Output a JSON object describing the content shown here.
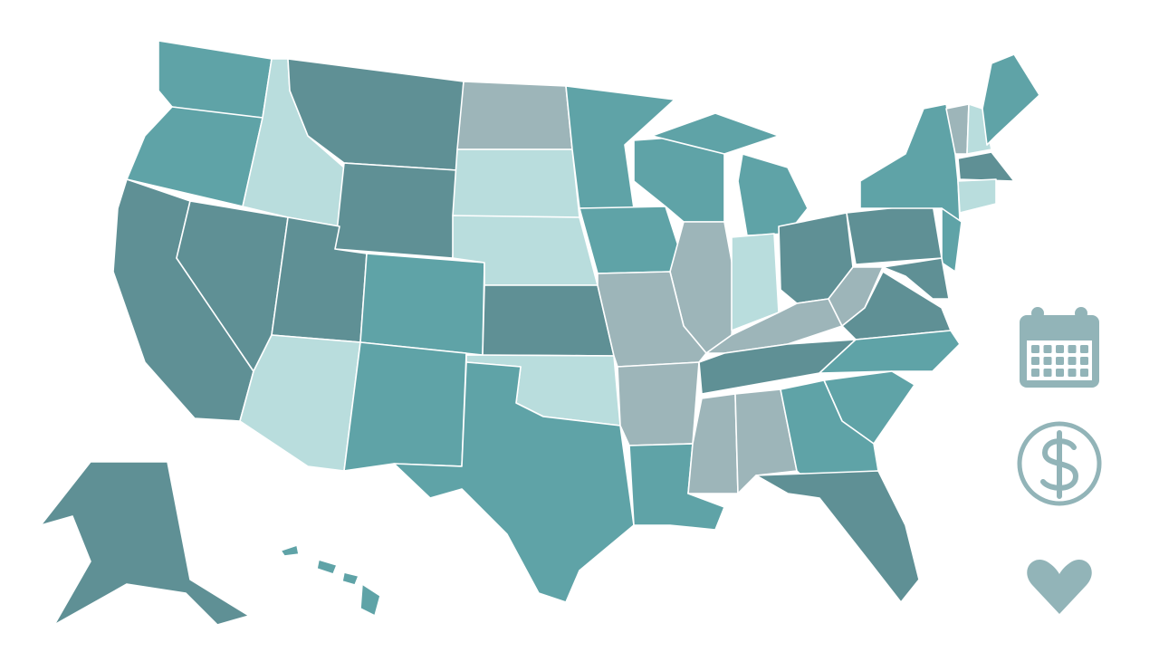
{
  "map": {
    "colors": [
      "#5f9095",
      "#5fa3a7",
      "#b9dddd",
      "#9db5b9"
    ]
  },
  "icons": {
    "color": "#92b4b8"
  }
}
